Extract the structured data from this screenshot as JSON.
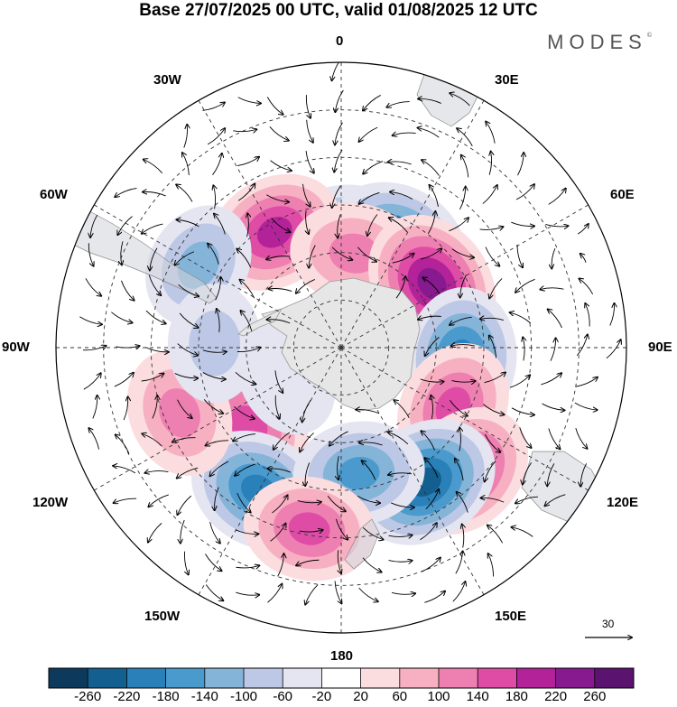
{
  "title": "Base 27/07/2025 00 UTC, valid 01/08/2025 12 UTC",
  "brand": "MODES",
  "brand_mark": "©",
  "longitude_labels": {
    "lon_0": "0",
    "lon_30e": "30E",
    "lon_60e": "60E",
    "lon_90e": "90E",
    "lon_120e": "120E",
    "lon_150e": "150E",
    "lon_180": "180",
    "lon_150w": "150W",
    "lon_120w": "120W",
    "lon_90w": "90W",
    "lon_60w": "60W",
    "lon_30w": "30W"
  },
  "wind_scale": {
    "label": "30"
  },
  "colorbar": {
    "labels": [
      "-260",
      "-220",
      "-180",
      "-140",
      "-100",
      "-60",
      "-20",
      "20",
      "60",
      "100",
      "140",
      "180",
      "220",
      "260"
    ],
    "colors": [
      "#0d3a5c",
      "#135f8f",
      "#2a80b8",
      "#4a9ace",
      "#85b4d9",
      "#bcc8e5",
      "#e4e5f1",
      "#ffffff",
      "#fbdcdf",
      "#f7b0c2",
      "#ee7fb1",
      "#de4ca6",
      "#b4229a",
      "#871a8e",
      "#5a1470"
    ]
  },
  "anomaly_centers": [
    {
      "lon": 5,
      "lat": -55,
      "value": -150
    },
    {
      "lon": -30,
      "lat": -48,
      "value": 180
    },
    {
      "lon": 28,
      "lat": -52,
      "value": -200
    },
    {
      "lon": 8,
      "lat": -60,
      "value": 120
    },
    {
      "lon": 55,
      "lat": -55,
      "value": 240
    },
    {
      "lon": -60,
      "lat": -38,
      "value": -100
    },
    {
      "lon": 95,
      "lat": -52,
      "value": -200
    },
    {
      "lon": 118,
      "lat": -50,
      "value": 150
    },
    {
      "lon": 135,
      "lat": -35,
      "value": 200
    },
    {
      "lon": 148,
      "lat": -40,
      "value": -240
    },
    {
      "lon": -130,
      "lat": -52,
      "value": 160
    },
    {
      "lon": -150,
      "lat": -38,
      "value": -200
    },
    {
      "lon": 172,
      "lat": -50,
      "value": -140
    },
    {
      "lon": -170,
      "lat": -32,
      "value": 140
    },
    {
      "lon": -112,
      "lat": -35,
      "value": 120
    },
    {
      "lon": -88,
      "lat": -50,
      "value": -60
    },
    {
      "lon": -120,
      "lat": -70,
      "value": -40
    }
  ]
}
